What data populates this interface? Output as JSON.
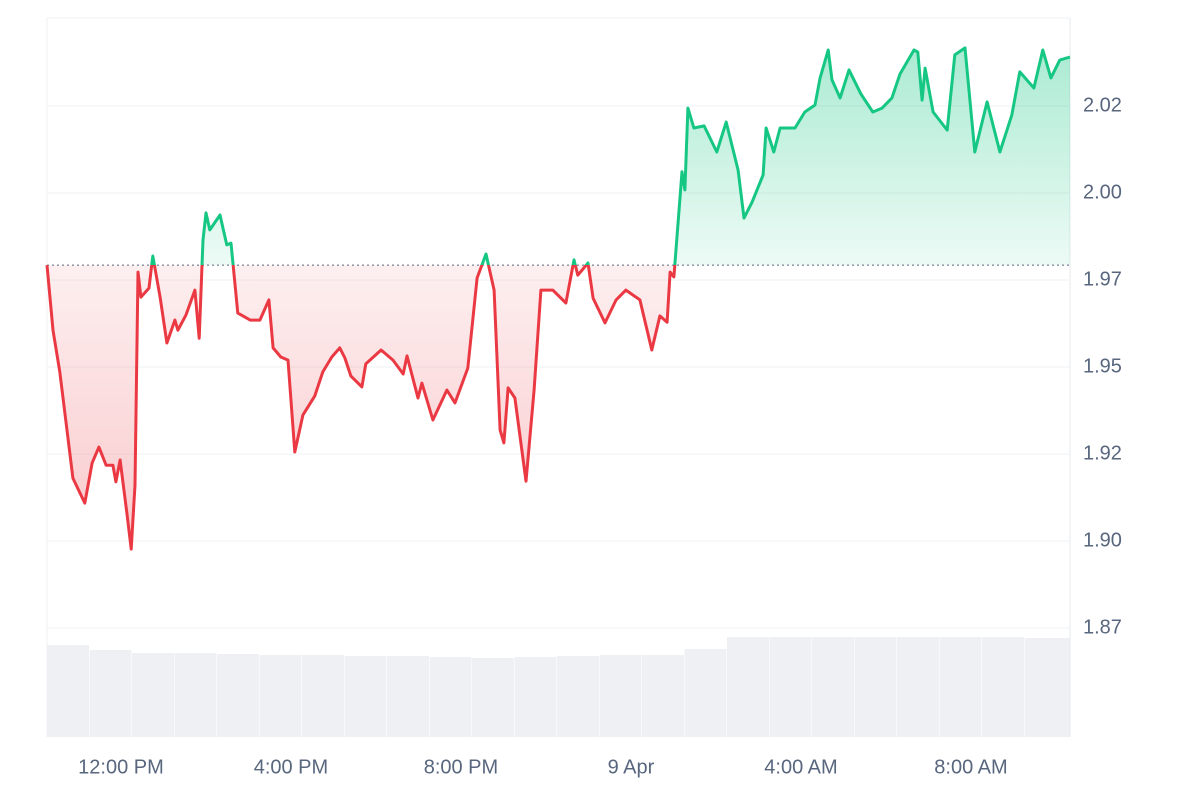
{
  "chart_data": {
    "type": "line",
    "x": [
      10.26,
      10.4,
      10.56,
      10.87,
      11.15,
      11.32,
      11.48,
      11.65,
      11.81,
      11.88,
      11.98,
      12.14,
      12.24,
      12.33,
      12.4,
      12.47,
      12.66,
      12.75,
      12.92,
      13.08,
      13.27,
      13.34,
      13.53,
      13.74,
      13.84,
      13.93,
      14.0,
      14.09,
      14.33,
      14.49,
      14.59,
      14.75,
      15.04,
      15.27,
      15.48,
      15.58,
      15.76,
      15.93,
      16.09,
      16.28,
      16.56,
      16.75,
      16.96,
      17.15,
      17.27,
      17.41,
      17.67,
      17.76,
      18.12,
      18.4,
      18.64,
      18.73,
      18.99,
      19.08,
      19.34,
      19.67,
      19.86,
      20.16,
      20.38,
      20.59,
      20.78,
      20.92,
      21.01,
      21.11,
      21.27,
      21.53,
      21.72,
      21.88,
      22.16,
      22.47,
      22.66,
      22.75,
      22.99,
      23.11,
      23.39,
      23.65,
      23.88,
      24.21,
      24.49,
      24.68,
      24.85,
      24.92,
      25.01,
      25.2,
      25.27,
      25.34,
      25.48,
      25.72,
      26.02,
      26.24,
      26.52,
      26.66,
      26.85,
      27.11,
      27.18,
      27.36,
      27.51,
      27.86,
      28.09,
      28.33,
      28.45,
      28.64,
      28.73,
      28.92,
      29.13,
      29.41,
      29.69,
      29.91,
      30.14,
      30.33,
      30.66,
      30.75,
      30.85,
      30.92,
      31.11,
      31.44,
      31.62,
      31.86,
      32.09,
      32.38,
      32.68,
      32.96,
      33.15,
      33.48,
      33.69,
      33.88,
      34.09,
      34.33
    ],
    "values": [
      1.9793,
      1.9606,
      1.9486,
      1.9181,
      1.9109,
      1.9224,
      1.927,
      1.9218,
      1.9218,
      1.917,
      1.9233,
      1.908,
      1.8977,
      1.9161,
      1.9773,
      1.9701,
      1.9727,
      1.9819,
      1.9701,
      1.9569,
      1.9635,
      1.9606,
      1.965,
      1.9721,
      1.9583,
      1.9865,
      1.9943,
      1.9894,
      1.9937,
      1.9851,
      1.9856,
      1.9655,
      1.9635,
      1.9635,
      1.9693,
      1.9555,
      1.9529,
      1.952,
      1.9256,
      1.9362,
      1.9417,
      1.9486,
      1.9529,
      1.9555,
      1.9526,
      1.9474,
      1.9443,
      1.9509,
      1.9549,
      1.952,
      1.948,
      1.9532,
      1.9411,
      1.9454,
      1.9348,
      1.9434,
      1.9397,
      1.9497,
      1.9756,
      1.9825,
      1.9721,
      1.9319,
      1.9282,
      1.944,
      1.9411,
      1.9172,
      1.9434,
      1.9721,
      1.9721,
      1.9684,
      1.9808,
      1.9764,
      1.9799,
      1.9698,
      1.9627,
      1.9693,
      1.9721,
      1.9693,
      1.9549,
      1.9647,
      1.9629,
      1.9773,
      1.9759,
      2.0061,
      2.0009,
      2.0244,
      2.0187,
      2.0193,
      2.0118,
      2.0204,
      2.0066,
      1.9928,
      1.9974,
      2.0052,
      2.0187,
      2.0118,
      2.0187,
      2.0187,
      2.0233,
      2.0253,
      2.0331,
      2.0411,
      2.0325,
      2.0273,
      2.0354,
      2.0285,
      2.0233,
      2.0244,
      2.0273,
      2.0342,
      2.0411,
      2.0405,
      2.0267,
      2.0359,
      2.0233,
      2.0181,
      2.0397,
      2.0417,
      2.0118,
      2.0262,
      2.0118,
      2.0224,
      2.0348,
      2.0302,
      2.0411,
      2.0331,
      2.0382,
      2.0391
    ],
    "baseline": 1.9793,
    "up_color": "#16c784",
    "down_color": "#ea3943",
    "xlim": [
      10.26,
      34.33
    ],
    "xticks": [
      {
        "value": 12,
        "label": "12:00 PM"
      },
      {
        "value": 16,
        "label": "4:00 PM"
      },
      {
        "value": 20,
        "label": "8:00 PM"
      },
      {
        "value": 24,
        "label": "9 Apr"
      },
      {
        "value": 28,
        "label": "4:00 AM"
      },
      {
        "value": 32,
        "label": "8:00 AM"
      }
    ],
    "ylim": [
      1.8437,
      2.0503
    ],
    "yticks": [
      {
        "value": 1.875,
        "label": "1.87"
      },
      {
        "value": 1.9,
        "label": "1.90"
      },
      {
        "value": 1.925,
        "label": "1.92"
      },
      {
        "value": 1.95,
        "label": "1.95"
      },
      {
        "value": 1.975,
        "label": "1.97"
      },
      {
        "value": 2.0,
        "label": "2.00"
      },
      {
        "value": 2.025,
        "label": "2.02"
      }
    ],
    "grid": true,
    "volume": {
      "x": [
        10.26,
        11.26,
        12.26,
        13.26,
        14.26,
        15.26,
        16.26,
        17.26,
        18.26,
        19.26,
        20.26,
        21.26,
        22.26,
        23.26,
        24.26,
        25.26,
        26.26,
        27.26,
        28.26,
        29.26,
        30.26,
        31.26,
        32.26,
        33.26
      ],
      "values": [
        92,
        87,
        84,
        84,
        83,
        82,
        82,
        81,
        81,
        80,
        79,
        80,
        81,
        82,
        82,
        88,
        100,
        100,
        100,
        100,
        100,
        100,
        100,
        99
      ],
      "ylim": [
        0,
        100
      ],
      "color": "#eef0f4"
    }
  }
}
